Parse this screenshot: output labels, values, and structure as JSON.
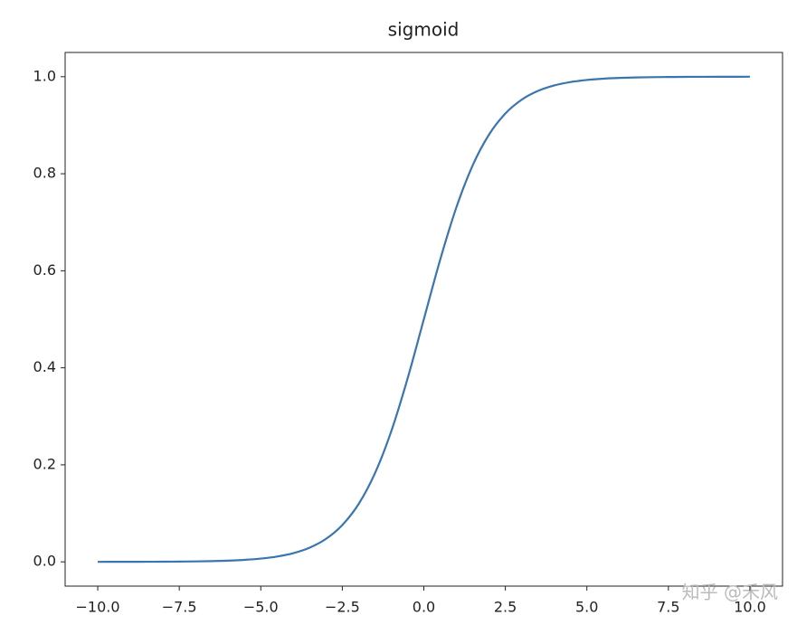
{
  "chart_data": {
    "type": "line",
    "title": "sigmoid",
    "x": [
      -10,
      -9.5,
      -9,
      -8.5,
      -8,
      -7.5,
      -7,
      -6.5,
      -6,
      -5.5,
      -5,
      -4.5,
      -4,
      -3.5,
      -3,
      -2.5,
      -2,
      -1.5,
      -1,
      -0.5,
      0,
      0.5,
      1,
      1.5,
      2,
      2.5,
      3,
      3.5,
      4,
      4.5,
      5,
      5.5,
      6,
      6.5,
      7,
      7.5,
      8,
      8.5,
      9,
      9.5,
      10
    ],
    "series": [
      {
        "color": "#3b75af",
        "values": [
          0.0,
          0.0001,
          0.0001,
          0.0002,
          0.0003,
          0.0006,
          0.0009,
          0.0015,
          0.0025,
          0.0041,
          0.0067,
          0.011,
          0.018,
          0.0293,
          0.0474,
          0.0759,
          0.1192,
          0.1824,
          0.2689,
          0.3775,
          0.5,
          0.6225,
          0.7311,
          0.8176,
          0.8808,
          0.9241,
          0.9526,
          0.9707,
          0.982,
          0.989,
          0.9933,
          0.9959,
          0.9975,
          0.9985,
          0.9991,
          0.9994,
          0.9997,
          0.9998,
          0.9999,
          0.9999,
          1.0
        ]
      }
    ],
    "xlim": [
      -11,
      11
    ],
    "ylim": [
      -0.05,
      1.05
    ],
    "xticks": [
      {
        "value": -10,
        "label": "−10.0"
      },
      {
        "value": -7.5,
        "label": "−7.5"
      },
      {
        "value": -5,
        "label": "−5.0"
      },
      {
        "value": -2.5,
        "label": "−2.5"
      },
      {
        "value": 0,
        "label": "0.0"
      },
      2.5,
      {
        "value": 5,
        "label": "5.0"
      },
      7.5,
      {
        "value": 10,
        "label": "10.0"
      }
    ],
    "yticks": [
      {
        "value": 0,
        "label": "0.0"
      },
      0.2,
      0.4,
      0.6,
      0.8,
      {
        "value": 1,
        "label": "1.0"
      }
    ],
    "grid": false,
    "watermark": "知乎 @禾风"
  }
}
